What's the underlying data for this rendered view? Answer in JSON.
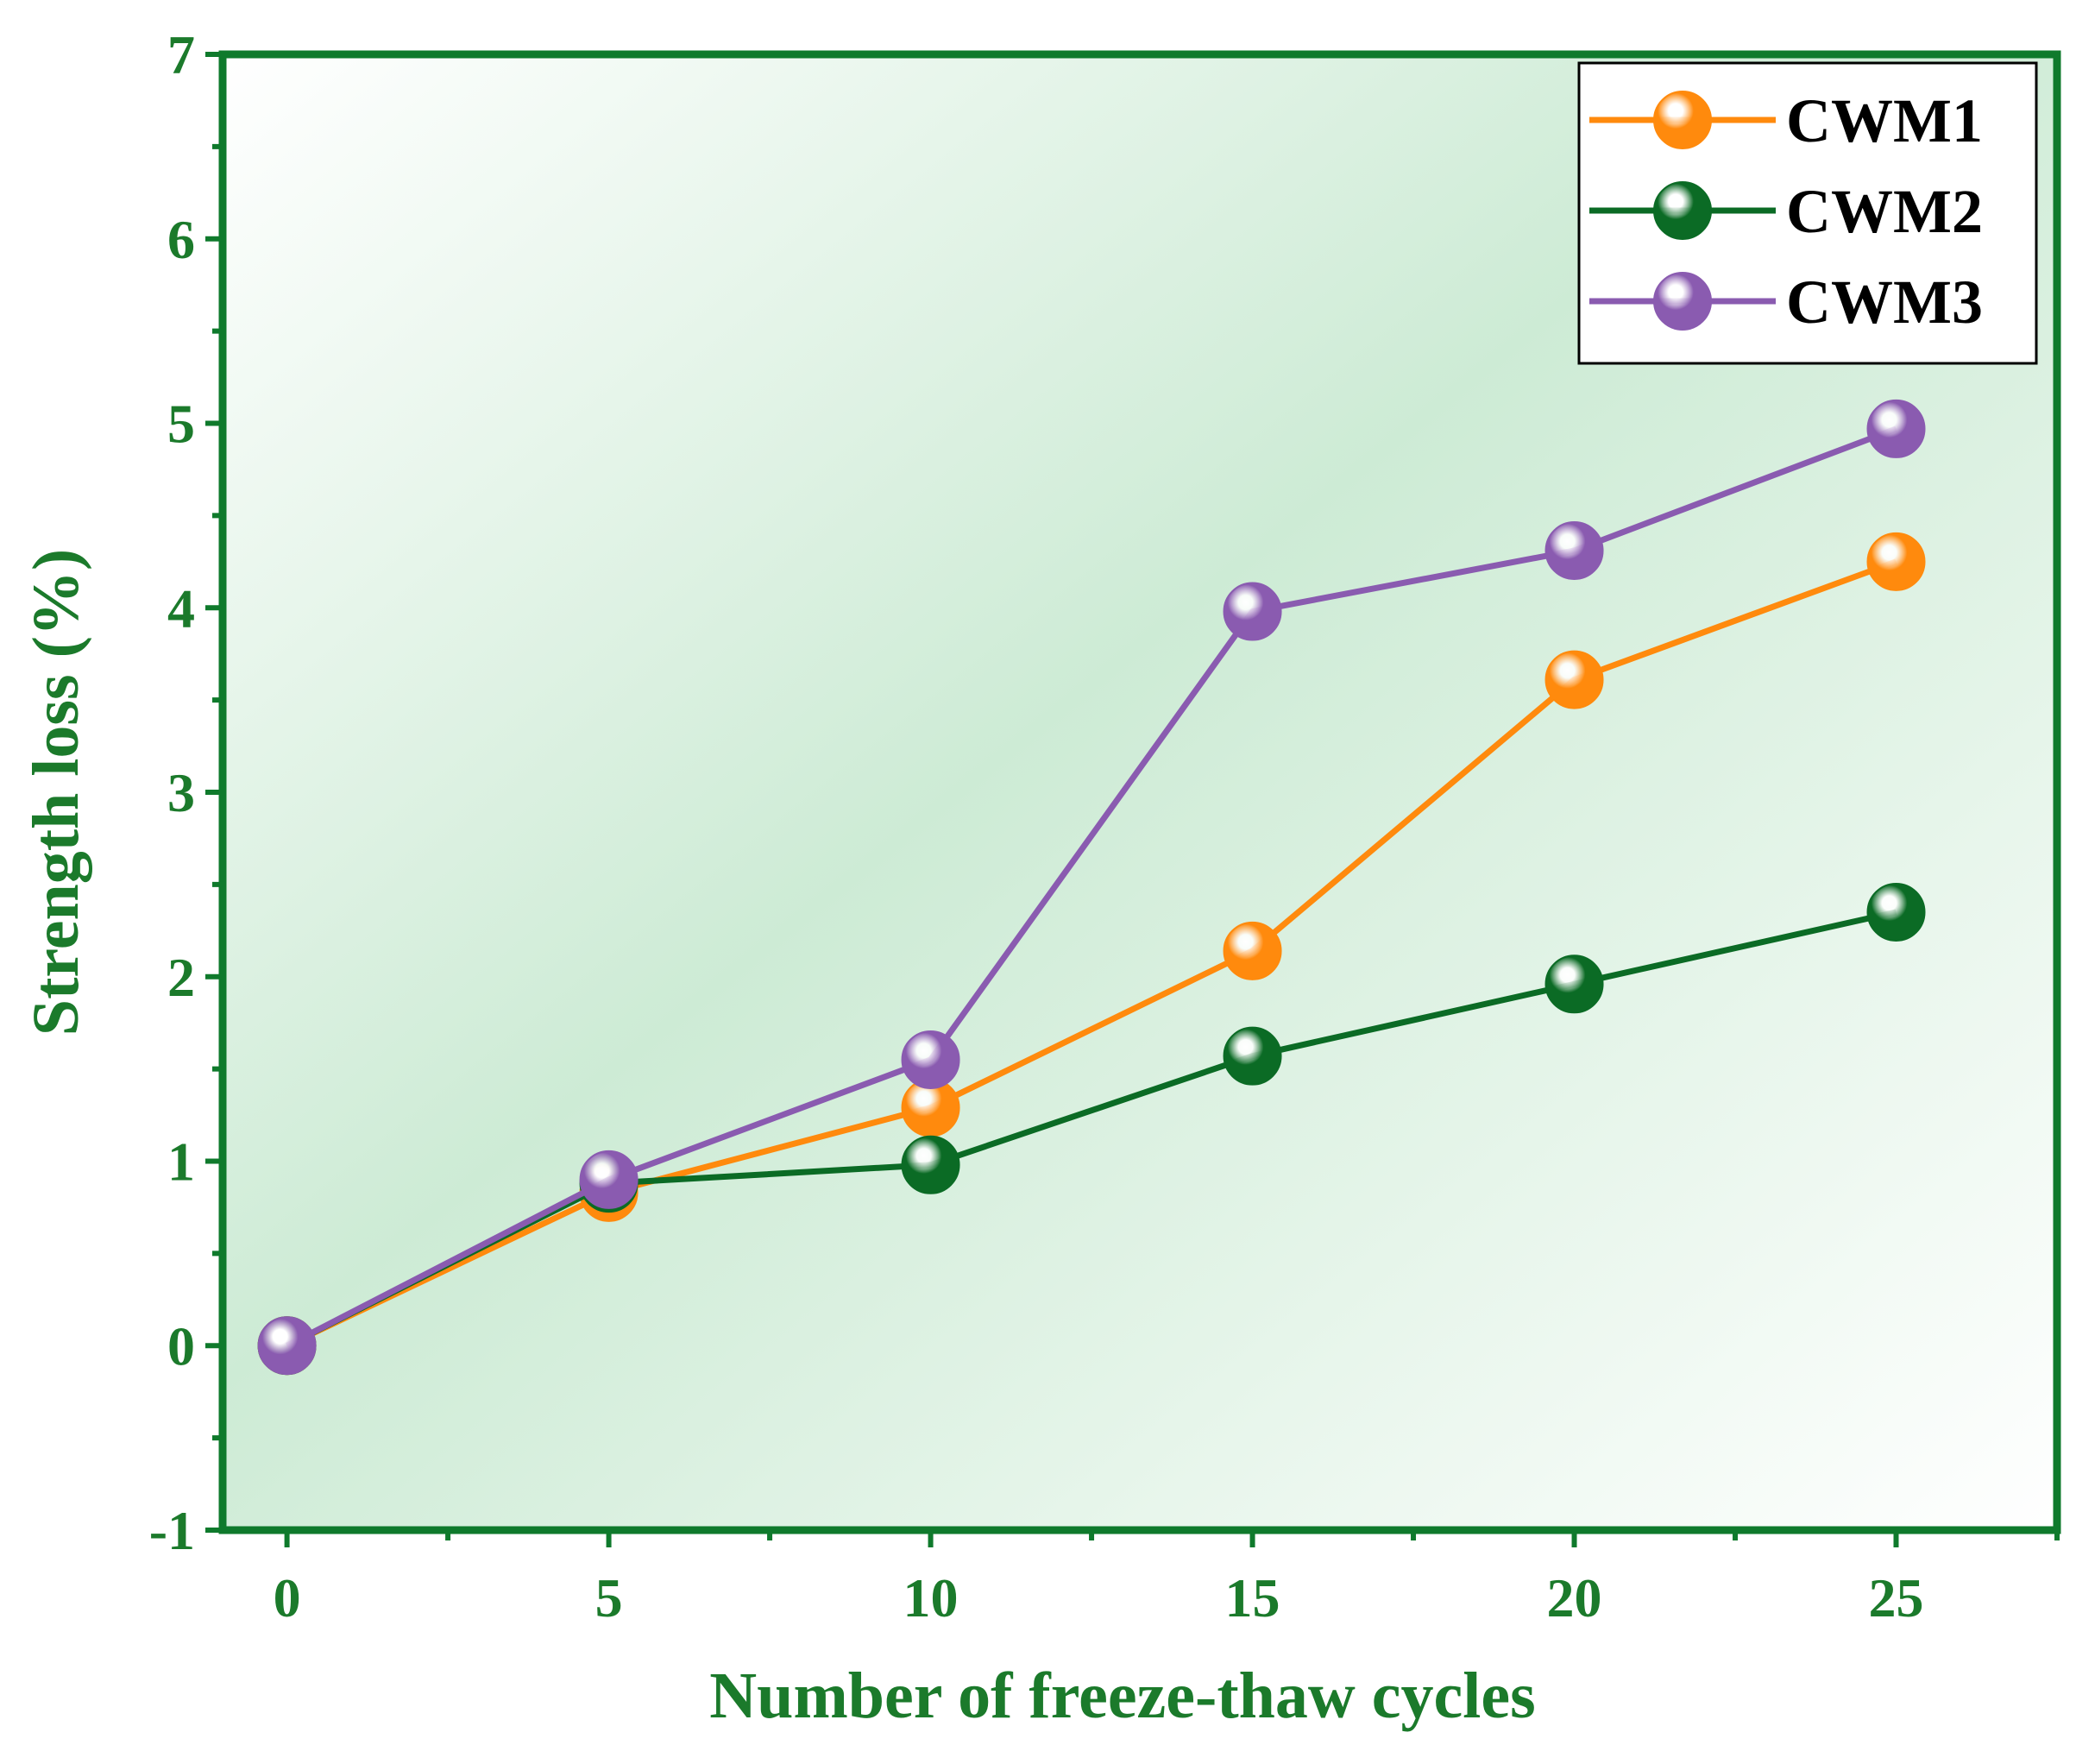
{
  "colors": {
    "axis": "#0f7a2c",
    "axis_text": "#1b7a2b",
    "bg_light": "#ffffff",
    "bg_mid": "#cdebd5",
    "legend_border": "#000000",
    "legend_bg": "#ffffff"
  },
  "chart_data": {
    "type": "line",
    "title": "",
    "xlabel": "Number of freeze-thaw cycles",
    "ylabel": "Strength loss (%)",
    "x": [
      0,
      5,
      10,
      15,
      20,
      25
    ],
    "xlim": [
      -1,
      27.5
    ],
    "ylim": [
      -1,
      7
    ],
    "xticks": [
      0,
      5,
      10,
      15,
      20,
      25
    ],
    "yticks": [
      -1,
      0,
      1,
      2,
      3,
      4,
      5,
      6,
      7
    ],
    "xtick_labels": [
      "0",
      "5",
      "10",
      "15",
      "20",
      "25"
    ],
    "ytick_labels": [
      "-1",
      "0",
      "1",
      "2",
      "3",
      "4",
      "5",
      "6",
      "7"
    ],
    "grid": false,
    "legend_position": "top-right",
    "series": [
      {
        "name": "CWM1",
        "color": "#ff8a0d",
        "values": [
          0,
          0.83,
          1.29,
          2.14,
          3.61,
          4.25
        ]
      },
      {
        "name": "CWM2",
        "color": "#0b6b25",
        "values": [
          0,
          0.88,
          0.98,
          1.57,
          1.96,
          2.35
        ]
      },
      {
        "name": "CWM3",
        "color": "#8a5bb0",
        "values": [
          0,
          0.9,
          1.55,
          3.98,
          4.31,
          4.97
        ]
      }
    ]
  }
}
